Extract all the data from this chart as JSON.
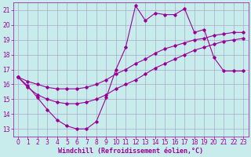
{
  "bg_color": "#c8ecec",
  "grid_color": "#aaaacc",
  "line_color": "#990099",
  "marker_color": "#990099",
  "xlabel": "Windchill (Refroidissement éolien,°C)",
  "xlabel_color": "#990099",
  "tick_color": "#990099",
  "ylim": [
    12.5,
    21.5
  ],
  "xlim": [
    -0.5,
    23.5
  ],
  "yticks": [
    13,
    14,
    15,
    16,
    17,
    18,
    19,
    20,
    21
  ],
  "xticks": [
    0,
    1,
    2,
    3,
    4,
    5,
    6,
    7,
    8,
    9,
    10,
    11,
    12,
    13,
    14,
    15,
    16,
    17,
    18,
    19,
    20,
    21,
    22,
    23
  ],
  "curve_jagged_x": [
    0,
    1,
    2,
    3,
    4,
    5,
    6,
    7,
    8,
    9,
    10,
    11,
    12,
    13,
    14,
    15,
    16,
    17,
    18,
    19,
    20,
    21,
    22,
    23
  ],
  "curve_jagged_y": [
    16.5,
    15.9,
    15.1,
    14.3,
    13.6,
    13.2,
    13.0,
    13.0,
    13.5,
    15.1,
    17.0,
    18.5,
    21.3,
    20.3,
    20.8,
    20.7,
    20.7,
    21.1,
    19.5,
    19.7,
    17.8,
    16.9,
    16.9,
    16.9
  ],
  "curve_upper_x": [
    0,
    1,
    2,
    3,
    4,
    5,
    6,
    7,
    8,
    9,
    10,
    11,
    12,
    13,
    14,
    15,
    16,
    17,
    18,
    19,
    20,
    21,
    22,
    23
  ],
  "curve_upper_y": [
    16.5,
    16.2,
    16.0,
    15.8,
    15.7,
    15.7,
    15.7,
    15.8,
    16.0,
    16.3,
    16.7,
    17.0,
    17.4,
    17.7,
    18.1,
    18.4,
    18.6,
    18.8,
    19.0,
    19.1,
    19.3,
    19.4,
    19.5,
    19.5
  ],
  "curve_lower_x": [
    0,
    1,
    2,
    3,
    4,
    5,
    6,
    7,
    8,
    9,
    10,
    11,
    12,
    13,
    14,
    15,
    16,
    17,
    18,
    19,
    20,
    21,
    22,
    23
  ],
  "curve_lower_y": [
    16.5,
    15.8,
    15.3,
    15.0,
    14.8,
    14.7,
    14.7,
    14.8,
    15.0,
    15.3,
    15.7,
    16.0,
    16.3,
    16.7,
    17.1,
    17.4,
    17.7,
    18.0,
    18.3,
    18.5,
    18.7,
    18.9,
    19.0,
    19.1
  ]
}
